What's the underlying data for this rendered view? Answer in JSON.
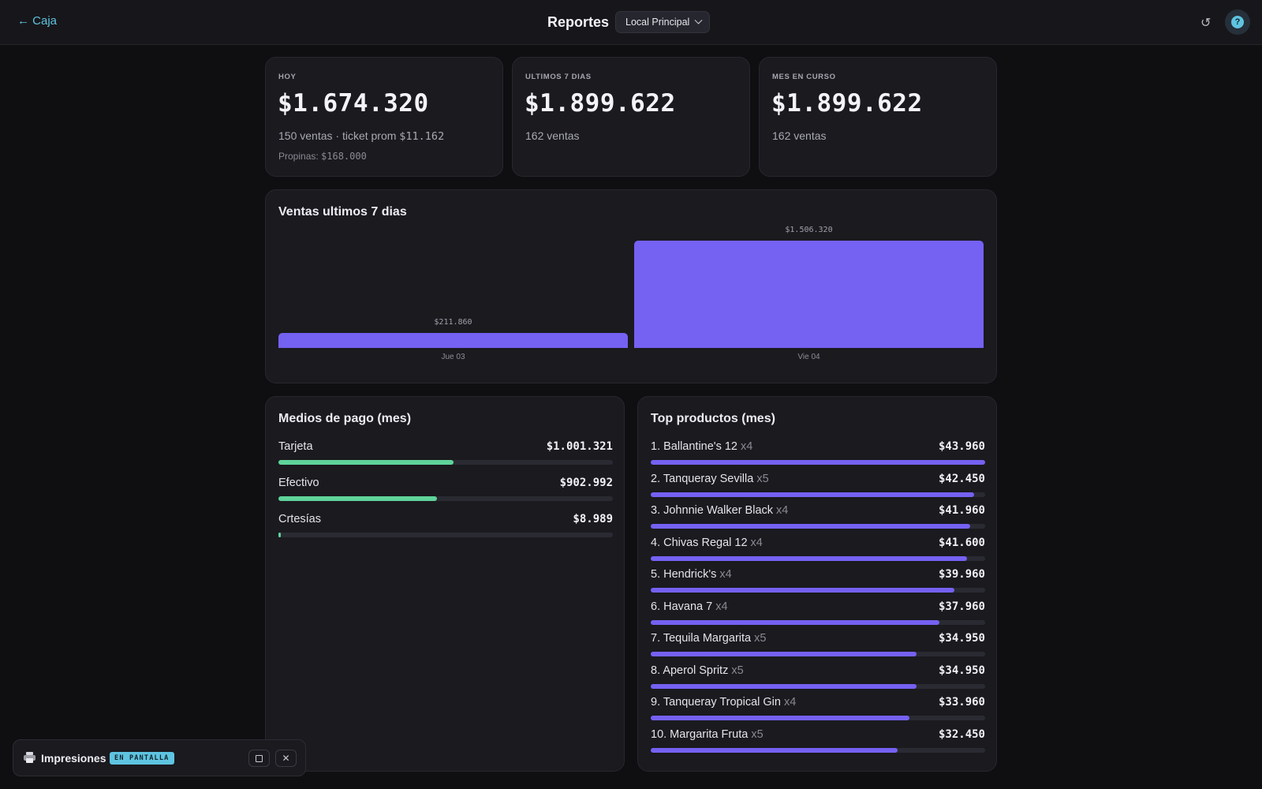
{
  "header": {
    "back_label": "← Caja",
    "title": "Reportes",
    "location_select": "Local Principal",
    "refresh_icon": "refresh-icon",
    "help_icon": "help-icon"
  },
  "stats": [
    {
      "label": "HOY",
      "value": "$1.674.320",
      "sub_prefix": "150 ventas · ticket prom ",
      "sub_mono": "$11.162",
      "tips_label": "Propinas: ",
      "tips_value": "$168.000"
    },
    {
      "label": "ULTIMOS 7 DIAS",
      "value": "$1.899.622",
      "sub": "162 ventas"
    },
    {
      "label": "MES EN CURSO",
      "value": "$1.899.622",
      "sub": "162 ventas"
    }
  ],
  "sales_chart": {
    "title": "Ventas ultimos 7 dias",
    "chart_data": {
      "type": "bar",
      "categories": [
        "Jue 03",
        "Vie 04"
      ],
      "values": [
        211860,
        1506320
      ],
      "value_labels": [
        "$211.860",
        "$1.506.320"
      ],
      "color": "#7561f2"
    }
  },
  "payments": {
    "title": "Medios de pago (mes)",
    "color": "#5fd39a",
    "items": [
      {
        "name": "Tarjeta",
        "amount": "$1.001.321",
        "fraction": 0.5247
      },
      {
        "name": "Efectivo",
        "amount": "$902.992",
        "fraction": 0.4731
      },
      {
        "name": "Crtesías",
        "amount": "$8.989",
        "fraction": 0.0047
      }
    ]
  },
  "top_products": {
    "title": "Top productos (mes)",
    "color": "#7561f2",
    "items": [
      {
        "name": "1. Ballantine's 12",
        "qty": " x4",
        "amount": "$43.960",
        "fraction": 1.0
      },
      {
        "name": "2. Tanqueray Sevilla",
        "qty": " x5",
        "amount": "$42.450",
        "fraction": 0.966
      },
      {
        "name": "3. Johnnie Walker Black",
        "qty": " x4",
        "amount": "$41.960",
        "fraction": 0.955
      },
      {
        "name": "4. Chivas Regal 12",
        "qty": " x4",
        "amount": "$41.600",
        "fraction": 0.946
      },
      {
        "name": "5. Hendrick's",
        "qty": " x4",
        "amount": "$39.960",
        "fraction": 0.909
      },
      {
        "name": "6. Havana 7",
        "qty": " x4",
        "amount": "$37.960",
        "fraction": 0.864
      },
      {
        "name": "7. Tequila Margarita",
        "qty": " x5",
        "amount": "$34.950",
        "fraction": 0.795
      },
      {
        "name": "8. Aperol Spritz",
        "qty": " x5",
        "amount": "$34.950",
        "fraction": 0.795
      },
      {
        "name": "9. Tanqueray Tropical Gin",
        "qty": " x4",
        "amount": "$33.960",
        "fraction": 0.773
      },
      {
        "name": "10. Margarita Fruta",
        "qty": " x5",
        "amount": "$32.450",
        "fraction": 0.738
      }
    ]
  },
  "print_widget": {
    "title": "Impresiones",
    "badge": "EN PANTALLA",
    "printer_icon": "printer-icon",
    "minimize_icon": "square-icon",
    "close_icon": "close-icon"
  }
}
